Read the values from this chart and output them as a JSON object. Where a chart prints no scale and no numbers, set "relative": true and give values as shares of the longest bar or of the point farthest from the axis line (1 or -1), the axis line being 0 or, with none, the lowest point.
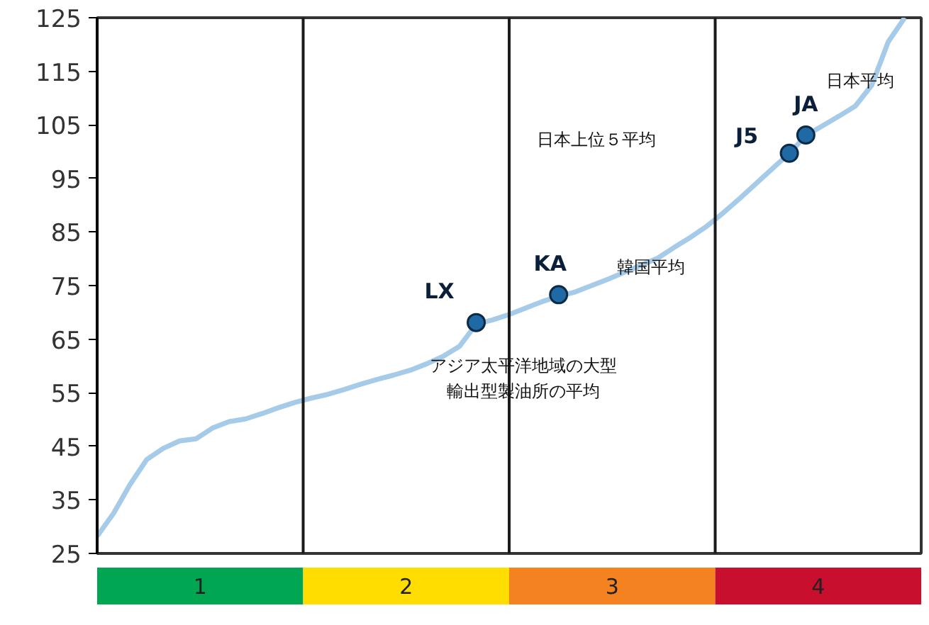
{
  "chart_data": [
    {
      "type": "line",
      "ylim": [
        25,
        125
      ],
      "yticks": [
        25,
        35,
        45,
        55,
        65,
        75,
        85,
        95,
        105,
        115,
        125
      ],
      "tick_labels": "y",
      "grid": false,
      "categories": [
        null,
        null,
        null,
        null,
        null,
        null,
        null,
        null,
        null,
        null,
        null,
        null,
        null,
        null,
        null,
        null,
        null,
        null,
        null,
        null,
        null,
        null,
        null,
        null,
        null,
        null,
        null,
        null,
        null,
        null,
        null,
        null,
        null,
        null,
        null,
        null,
        null,
        null,
        null,
        null,
        null,
        null,
        null,
        null,
        null,
        null,
        null,
        null,
        null,
        null
      ],
      "series": [
        {
          "color": "#a6cbe8",
          "marker": "none",
          "values": [
            28.2,
            32.5,
            37.9,
            42.5,
            44.6,
            46.0,
            46.4,
            48.4,
            49.6,
            50.1,
            51.1,
            52.2,
            53.2,
            54.0,
            54.7,
            55.6,
            56.6,
            57.5,
            58.3,
            59.2,
            60.4,
            61.8,
            63.7,
            67.8,
            68.6,
            69.6,
            70.8,
            72.0,
            73.0,
            73.8,
            75.0,
            76.2,
            77.5,
            78.8,
            80.1,
            82.1,
            84.0,
            86.1,
            88.6,
            91.3,
            94.1,
            96.9,
            99.7,
            103.0,
            104.8,
            106.6,
            108.5,
            112.4,
            120.5,
            125
          ]
        },
        {
          "type": "scatter",
          "color": "#1f6aa5",
          "marker": "circle",
          "values": [
            null,
            null,
            null,
            null,
            null,
            null,
            null,
            null,
            null,
            null,
            null,
            null,
            null,
            null,
            null,
            null,
            null,
            null,
            null,
            null,
            null,
            null,
            null,
            68.1,
            null,
            null,
            null,
            null,
            73.3,
            null,
            null,
            null,
            null,
            null,
            null,
            null,
            null,
            null,
            null,
            null,
            null,
            null,
            99.7,
            103.1,
            null,
            null,
            null,
            null,
            null,
            null
          ],
          "value_labels": [
            null,
            null,
            null,
            null,
            null,
            null,
            null,
            null,
            null,
            null,
            null,
            null,
            null,
            null,
            null,
            null,
            null,
            null,
            null,
            null,
            null,
            null,
            null,
            "LX",
            null,
            null,
            null,
            null,
            "KA",
            null,
            null,
            null,
            null,
            null,
            null,
            null,
            null,
            null,
            null,
            null,
            null,
            null,
            "J5",
            "JA",
            null,
            null,
            null,
            null,
            null,
            null
          ]
        }
      ],
      "annotations": [
        "日本平均",
        "日本上位５平均",
        "韓国平均",
        "アジア太平洋地域の大型輸出型製油所の平均"
      ]
    },
    {
      "type": "bar",
      "orientation": "horizontal",
      "stacked": true,
      "relative": true,
      "categories": [
        null
      ],
      "series": [
        {
          "name": "1",
          "color": "#00a651",
          "values": [
            0.25
          ]
        },
        {
          "name": "2",
          "color": "#ffdd00",
          "values": [
            0.25
          ]
        },
        {
          "name": "3",
          "color": "#f58220",
          "values": [
            0.25
          ]
        },
        {
          "name": "4",
          "color": "#c8102e",
          "values": [
            0.25
          ]
        }
      ]
    }
  ]
}
